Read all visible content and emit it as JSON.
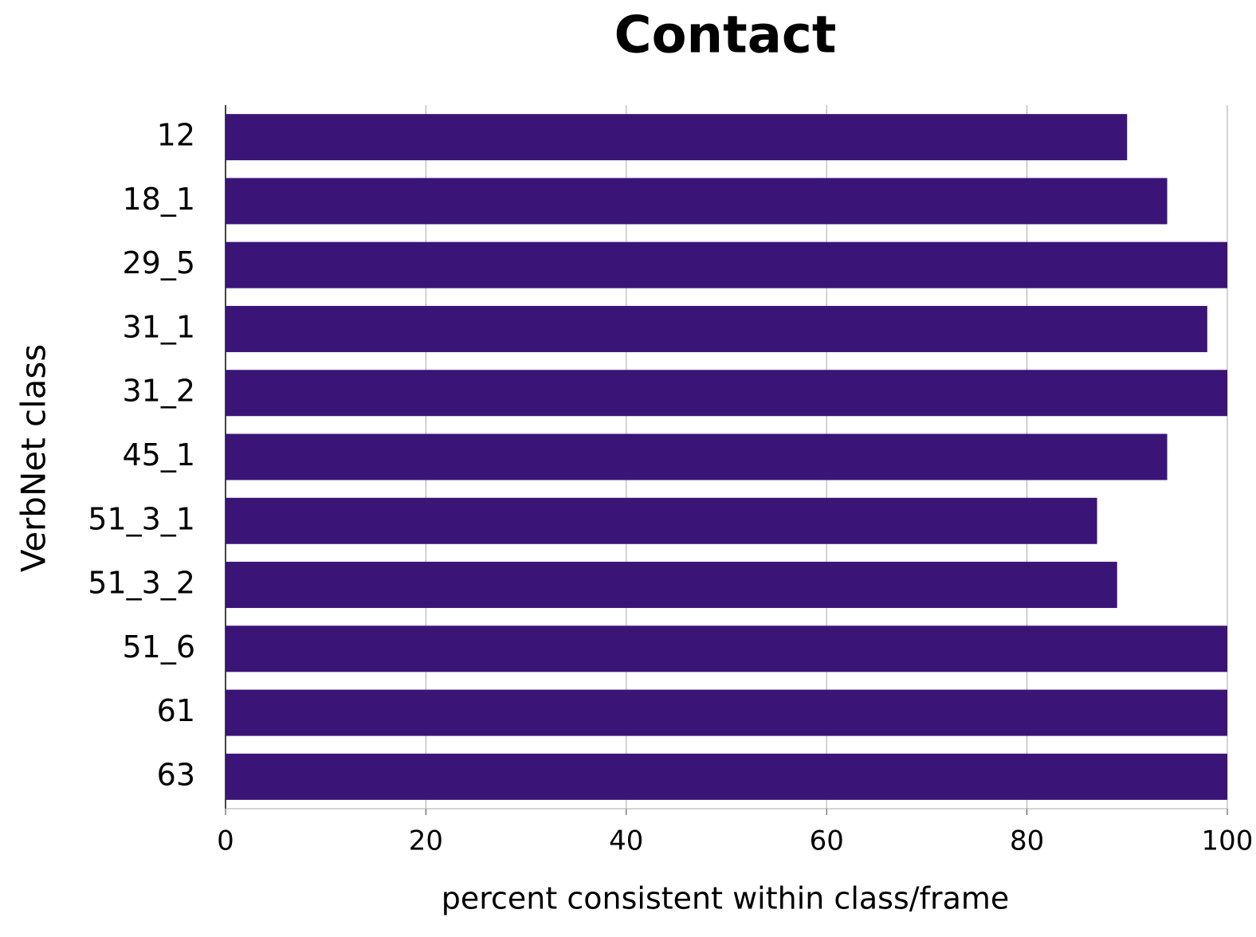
{
  "chart_data": {
    "type": "bar",
    "orientation": "horizontal",
    "title": "Contact",
    "x_label": "percent consistent within class/frame",
    "y_label": "VerbNet class",
    "categories": [
      "12",
      "18_1",
      "29_5",
      "31_1",
      "31_2",
      "45_1",
      "51_3_1",
      "51_3_2",
      "51_6",
      "61",
      "63"
    ],
    "values": [
      90,
      94,
      100,
      98,
      100,
      94,
      87,
      89,
      100,
      100,
      100
    ],
    "color": "#3a1577",
    "xlim": [
      0,
      100
    ],
    "xticks": [
      0,
      20,
      40,
      60,
      80,
      100
    ],
    "grid": true
  }
}
